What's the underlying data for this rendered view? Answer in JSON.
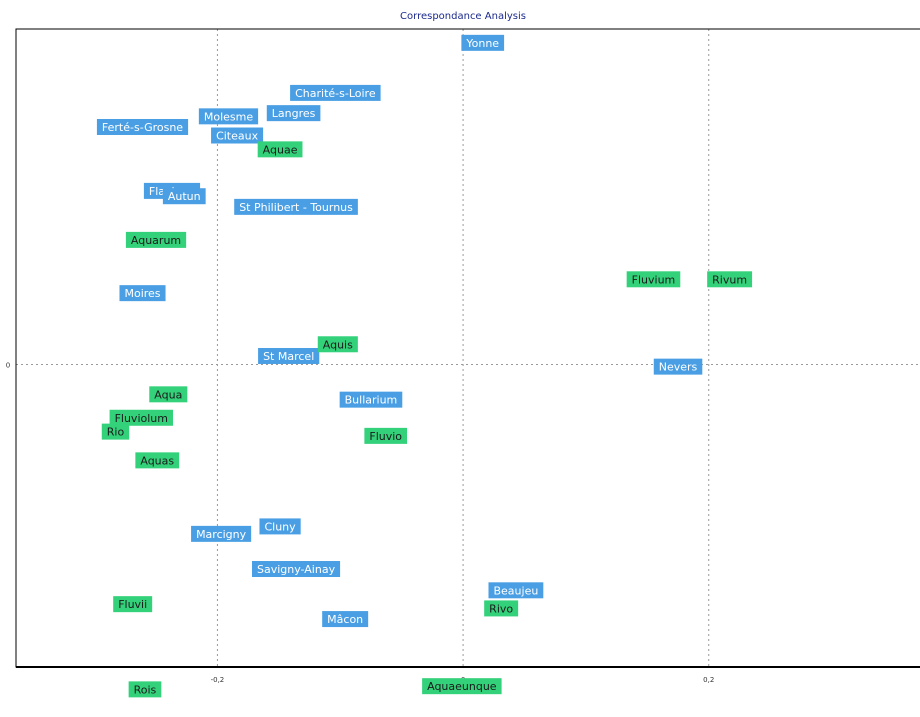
{
  "chart_data": {
    "type": "scatter",
    "title": "Correspondance Analysis",
    "xlabel": "",
    "ylabel": "",
    "xlim": [
      -0.364,
      0.372
    ],
    "ylim": [
      -0.284,
      0.315
    ],
    "x_ticks": [
      {
        "value": -0.2,
        "label": "-0,2"
      },
      {
        "value": 0,
        "label": "0"
      },
      {
        "value": 0.2,
        "label": "0,2"
      }
    ],
    "y_ticks": [
      {
        "value": 0,
        "label": "0"
      }
    ],
    "grid": true,
    "series": [
      {
        "color": "#4a9fe4",
        "text_color": "#ffffff",
        "points": [
          {
            "label": "Yonne",
            "x": 0.016,
            "y": 0.302
          },
          {
            "label": "Charité-s-Loire",
            "x": -0.104,
            "y": 0.255
          },
          {
            "label": "Langres",
            "x": -0.138,
            "y": 0.236
          },
          {
            "label": "Molesme",
            "x": -0.191,
            "y": 0.233
          },
          {
            "label": "Ferté-s-Grosne",
            "x": -0.261,
            "y": 0.223
          },
          {
            "label": "Citeaux",
            "x": -0.184,
            "y": 0.215
          },
          {
            "label": "Flavigny",
            "x": -0.237,
            "y": 0.163
          },
          {
            "label": "Autun",
            "x": -0.227,
            "y": 0.158
          },
          {
            "label": "St Philibert - Tournus",
            "x": -0.136,
            "y": 0.148
          },
          {
            "label": "Nevers",
            "x": 0.175,
            "y": -0.002
          },
          {
            "label": "Moires",
            "x": -0.261,
            "y": 0.067
          },
          {
            "label": "St Marcel",
            "x": -0.142,
            "y": 0.008
          },
          {
            "label": "Bullarium",
            "x": -0.075,
            "y": -0.033
          },
          {
            "label": "Cluny",
            "x": -0.149,
            "y": -0.152
          },
          {
            "label": "Marcigny",
            "x": -0.197,
            "y": -0.159
          },
          {
            "label": "Savigny-Ainay",
            "x": -0.136,
            "y": -0.192
          },
          {
            "label": "Beaujeu",
            "x": 0.043,
            "y": -0.212
          },
          {
            "label": "Mâcon",
            "x": -0.096,
            "y": -0.239
          }
        ]
      },
      {
        "color": "#33d17a",
        "text_color": "#1a1a1a",
        "points": [
          {
            "label": "Aquae",
            "x": -0.149,
            "y": 0.202
          },
          {
            "label": "Aquarum",
            "x": -0.25,
            "y": 0.117
          },
          {
            "label": "Fluvium",
            "x": 0.155,
            "y": 0.08
          },
          {
            "label": "Rivum",
            "x": 0.217,
            "y": 0.08
          },
          {
            "label": "Aquis",
            "x": -0.102,
            "y": 0.019
          },
          {
            "label": "Aqua",
            "x": -0.24,
            "y": -0.028
          },
          {
            "label": "Fluviolum",
            "x": -0.262,
            "y": -0.05
          },
          {
            "label": "Rio",
            "x": -0.283,
            "y": -0.063
          },
          {
            "label": "Aquas",
            "x": -0.249,
            "y": -0.09
          },
          {
            "label": "Fluvio",
            "x": -0.063,
            "y": -0.067
          },
          {
            "label": "Fluvii",
            "x": -0.269,
            "y": -0.225
          },
          {
            "label": "Rivo",
            "x": 0.031,
            "y": -0.229
          },
          {
            "label": "Rois",
            "x": -0.259,
            "y": -0.305
          },
          {
            "label": "Aquaeunque",
            "x": -0.001,
            "y": -0.302
          }
        ]
      }
    ]
  }
}
